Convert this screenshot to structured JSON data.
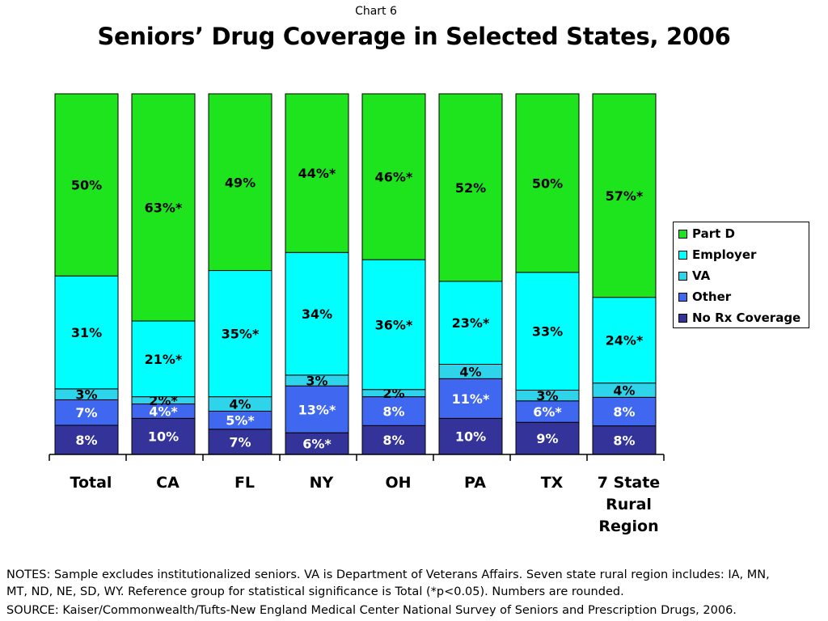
{
  "header": {
    "label": "Chart 6",
    "title": "Seniors’ Drug Coverage in Selected States, 2006"
  },
  "chart_data": {
    "type": "bar",
    "stacked": true,
    "categories": [
      "Total",
      "CA",
      "FL",
      "NY",
      "OH",
      "PA",
      "TX",
      "7 State Rural Region"
    ],
    "ylim": [
      0,
      100
    ],
    "grid": false,
    "legend_position": "right",
    "series": [
      {
        "name": "No Rx Coverage",
        "color": "#33339a",
        "values": [
          8,
          10,
          7,
          6,
          8,
          10,
          9,
          8
        ],
        "labels": [
          "8%",
          "10%",
          "7%",
          "6%*",
          "8%",
          "10%",
          "9%",
          "8%"
        ]
      },
      {
        "name": "Other",
        "color": "#3f67f0",
        "values": [
          7,
          4,
          5,
          13,
          8,
          11,
          6,
          8
        ],
        "labels": [
          "7%",
          "4%*",
          "5%*",
          "13%*",
          "8%",
          "11%*",
          "6%*",
          "8%"
        ]
      },
      {
        "name": "VA",
        "color": "#2ed4ea",
        "values": [
          3,
          2,
          4,
          3,
          2,
          4,
          3,
          4
        ],
        "labels": [
          "3%",
          "2%*",
          "4%",
          "3%",
          "2%",
          "4%",
          "3%",
          "4%"
        ]
      },
      {
        "name": "Employer",
        "color": "#00ffff",
        "values": [
          31,
          21,
          35,
          34,
          36,
          23,
          33,
          24
        ],
        "labels": [
          "31%",
          "21%*",
          "35%*",
          "34%",
          "36%*",
          "23%*",
          "33%",
          "24%*"
        ]
      },
      {
        "name": "Part D",
        "color": "#1ee41e",
        "values": [
          50,
          63,
          49,
          44,
          46,
          52,
          50,
          57
        ],
        "labels": [
          "50%",
          "63%*",
          "49%",
          "44%*",
          "46%*",
          "52%",
          "50%",
          "57%*"
        ]
      }
    ]
  },
  "legend_order": [
    "Part D",
    "Employer",
    "VA",
    "Other",
    "No Rx Coverage"
  ],
  "footer": {
    "notes_line1": "NOTES: Sample excludes institutionalized seniors. VA is Department of Veterans Affairs. Seven state rural region includes: IA, MN,",
    "notes_line2": "MT, ND, NE, SD, WY. Reference group for statistical significance is Total (*p<0.05). Numbers are rounded.",
    "source": "SOURCE: Kaiser/Commonwealth/Tufts-New England Medical Center National Survey of Seniors and Prescription Drugs, 2006."
  }
}
